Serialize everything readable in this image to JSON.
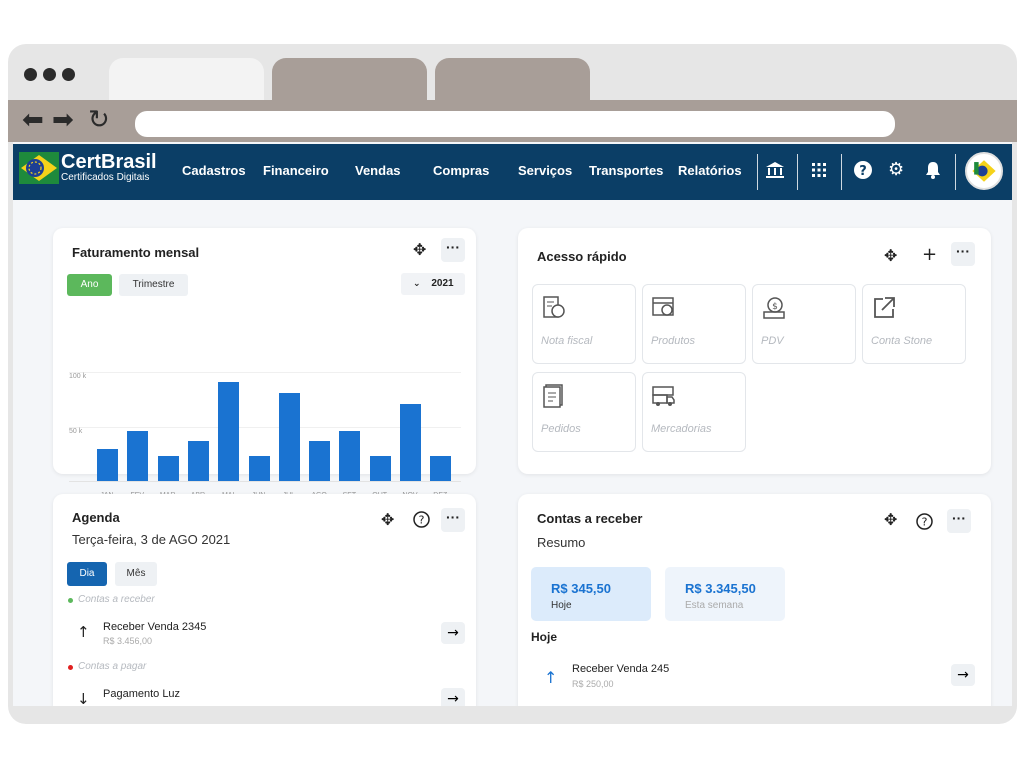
{
  "app": {
    "brand_name": "CertBrasil",
    "brand_sub": "Certificados Digitais"
  },
  "menu": [
    "Cadastros",
    "Financeiro",
    "Vendas",
    "Compras",
    "Serviços",
    "Transportes",
    "Relatórios"
  ],
  "icons": {
    "bank": "bank-icon",
    "apps": "grid-icon",
    "help": "help-icon",
    "settings": "gear-icon",
    "notifications": "bell-icon"
  },
  "faturamento": {
    "title": "Faturamento mensal",
    "btn_ano": "Ano",
    "btn_trimestre": "Trimestre",
    "year": "2021"
  },
  "chart_data": {
    "type": "bar",
    "title": "Faturamento mensal",
    "categories": [
      "JAN",
      "FEV",
      "MAR",
      "ABR",
      "MAI",
      "JUN",
      "JUL",
      "AGO",
      "SET",
      "OUT",
      "NOV",
      "DEZ"
    ],
    "values": [
      29,
      46,
      23,
      37,
      91,
      23,
      81,
      37,
      46,
      23,
      71,
      23
    ],
    "y_ticks": [
      "100 k",
      "50 k"
    ],
    "ylim": [
      0,
      100
    ],
    "grid": true,
    "colors": {
      "bar": "#1a73d1"
    }
  },
  "acesso": {
    "title": "Acesso rápido",
    "tiles": [
      "Nota fiscal",
      "Produtos",
      "PDV",
      "Conta Stone",
      "Pedidos",
      "Mercadorias"
    ]
  },
  "agenda": {
    "title": "Agenda",
    "date": "Terça-feira, 3 de AGO 2021",
    "btn_dia": "Dia",
    "btn_mes": "Mês",
    "section_receber": "Contas a receber",
    "item1_title": "Receber Venda 2345",
    "item1_value": "R$ 3.456,00",
    "section_pagar": "Contas a pagar",
    "item2_title": "Pagamento Luz"
  },
  "contas": {
    "title": "Contas a receber",
    "subtitle": "Resumo",
    "today_value": "R$ 345,50",
    "today_label": "Hoje",
    "week_value": "R$ 3.345,50",
    "week_label": "Esta semana",
    "section_hoje": "Hoje",
    "item_title": "Receber Venda 245",
    "item_value": "R$ 250,00"
  },
  "colors": {
    "navbar": "#0b3e66",
    "accent_green": "#5cb85c",
    "accent_blue": "#1a73d1",
    "btn_dark_blue": "#1565b0",
    "summary_bg": "#dcebfb"
  }
}
